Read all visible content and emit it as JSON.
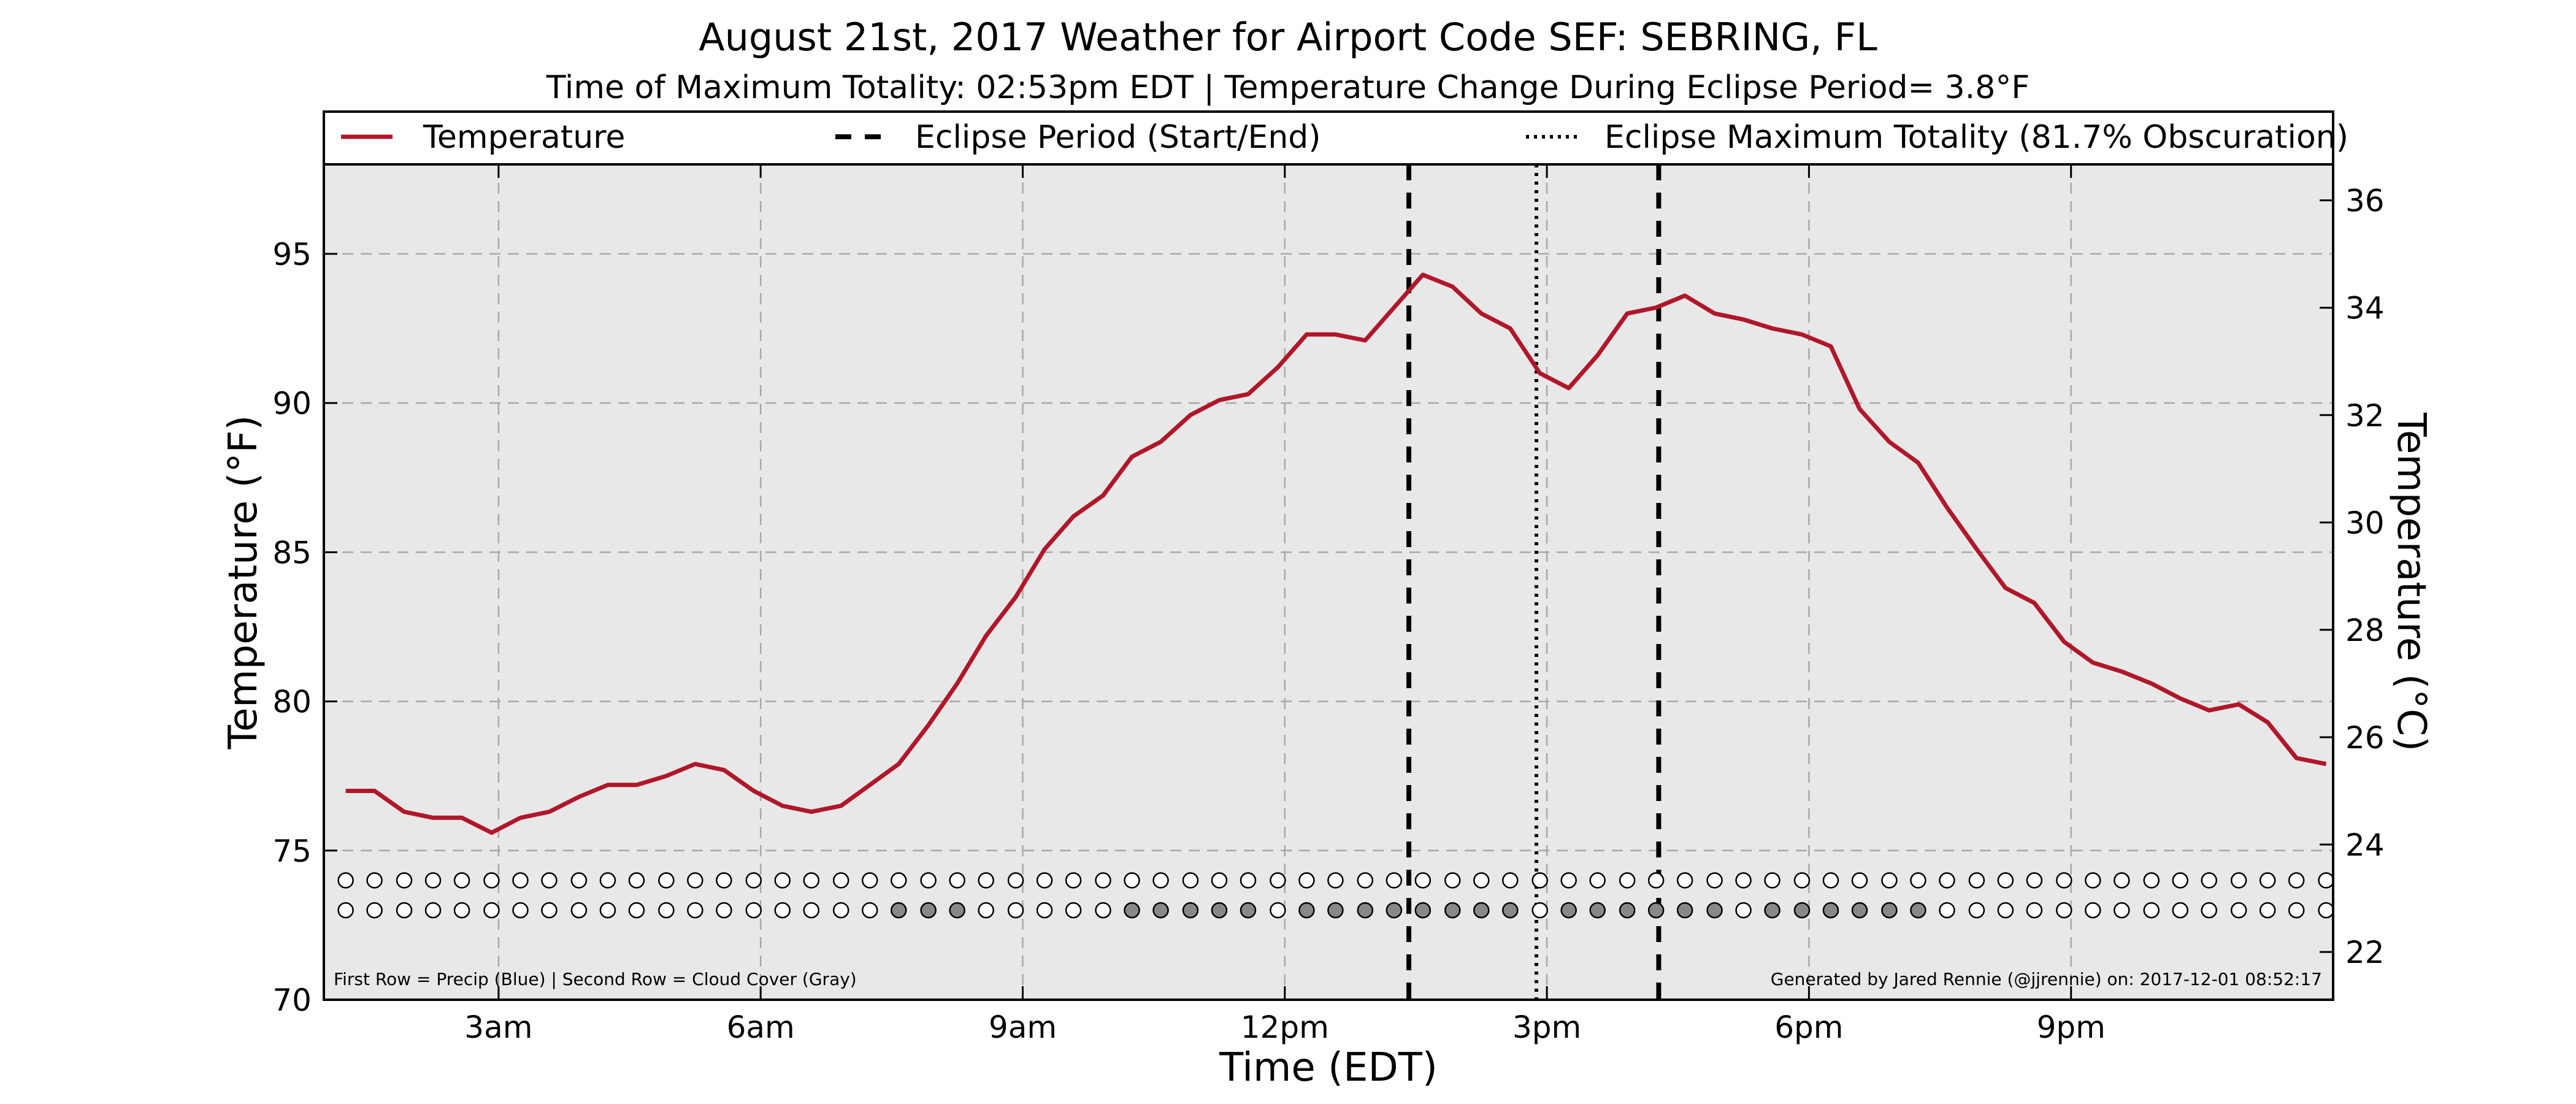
{
  "chart_data": {
    "type": "line",
    "title": "August 21st, 2017 Weather for Airport Code SEF: SEBRING, FL",
    "subtitle": "Time of Maximum Totality: 02:53pm EDT | Temperature Change During Eclipse Period= 3.8°F",
    "xlabel": "Time (EDT)",
    "ylabel": "Temperature (°F)",
    "ylabel_right": "Temperature (°C)",
    "xlim": [
      1.0,
      24.0
    ],
    "ylim": [
      70,
      98
    ],
    "ylim_right": [
      21.11,
      36.67
    ],
    "x_ticks": [
      {
        "x": 3,
        "label": "3am"
      },
      {
        "x": 6,
        "label": "6am"
      },
      {
        "x": 9,
        "label": "9am"
      },
      {
        "x": 12,
        "label": "12pm"
      },
      {
        "x": 15,
        "label": "3pm"
      },
      {
        "x": 18,
        "label": "6pm"
      },
      {
        "x": 21,
        "label": "9pm"
      }
    ],
    "y_ticks": [
      70,
      75,
      80,
      85,
      90,
      95
    ],
    "y_ticks_right": [
      22,
      24,
      26,
      28,
      30,
      32,
      34,
      36
    ],
    "grid": true,
    "legend_position": "top",
    "legend": [
      {
        "label": "Temperature",
        "style": "solid"
      },
      {
        "label": "Eclipse Period (Start/End)",
        "style": "dashed"
      },
      {
        "label": "Eclipse Maximum Totality (81.7% Obscuration)",
        "style": "dotted"
      }
    ],
    "series": [
      {
        "name": "Temperature",
        "color": "#b0172a",
        "points": [
          [
            1.25,
            77.0
          ],
          [
            1.58,
            77.0
          ],
          [
            1.92,
            76.3
          ],
          [
            2.25,
            76.1
          ],
          [
            2.58,
            76.1
          ],
          [
            2.92,
            75.6
          ],
          [
            3.25,
            76.1
          ],
          [
            3.58,
            76.3
          ],
          [
            3.92,
            76.8
          ],
          [
            4.25,
            77.2
          ],
          [
            4.58,
            77.2
          ],
          [
            4.92,
            77.5
          ],
          [
            5.25,
            77.9
          ],
          [
            5.58,
            77.7
          ],
          [
            5.92,
            77.0
          ],
          [
            6.25,
            76.5
          ],
          [
            6.58,
            76.3
          ],
          [
            6.92,
            76.5
          ],
          [
            7.25,
            77.2
          ],
          [
            7.58,
            77.9
          ],
          [
            7.92,
            79.2
          ],
          [
            8.25,
            80.6
          ],
          [
            8.58,
            82.2
          ],
          [
            8.92,
            83.5
          ],
          [
            9.25,
            85.1
          ],
          [
            9.58,
            86.2
          ],
          [
            9.92,
            86.9
          ],
          [
            10.25,
            88.2
          ],
          [
            10.58,
            88.7
          ],
          [
            10.92,
            89.6
          ],
          [
            11.25,
            90.1
          ],
          [
            11.58,
            90.3
          ],
          [
            11.92,
            91.2
          ],
          [
            12.25,
            92.3
          ],
          [
            12.58,
            92.3
          ],
          [
            12.92,
            92.1
          ],
          [
            13.25,
            93.2
          ],
          [
            13.58,
            94.3
          ],
          [
            13.92,
            93.9
          ],
          [
            14.25,
            93.0
          ],
          [
            14.58,
            92.5
          ],
          [
            14.92,
            91.0
          ],
          [
            15.25,
            90.5
          ],
          [
            15.58,
            91.6
          ],
          [
            15.92,
            93.0
          ],
          [
            16.25,
            93.2
          ],
          [
            16.58,
            93.6
          ],
          [
            16.92,
            93.0
          ],
          [
            17.25,
            92.8
          ],
          [
            17.58,
            92.5
          ],
          [
            17.92,
            92.3
          ],
          [
            18.25,
            91.9
          ],
          [
            18.58,
            89.8
          ],
          [
            18.92,
            88.7
          ],
          [
            19.25,
            88.0
          ],
          [
            19.58,
            86.5
          ],
          [
            19.92,
            85.1
          ],
          [
            20.25,
            83.8
          ],
          [
            20.58,
            83.3
          ],
          [
            20.92,
            82.0
          ],
          [
            21.25,
            81.3
          ],
          [
            21.58,
            81.0
          ],
          [
            21.92,
            80.6
          ],
          [
            22.25,
            80.1
          ],
          [
            22.58,
            79.7
          ],
          [
            22.92,
            79.9
          ],
          [
            23.25,
            79.3
          ],
          [
            23.58,
            78.1
          ],
          [
            23.92,
            77.9
          ]
        ]
      }
    ],
    "eclipse": {
      "start_x": 13.42,
      "end_x": 16.28,
      "max_x": 14.88
    },
    "dot_rows": {
      "x": [
        1.25,
        1.58,
        1.92,
        2.25,
        2.58,
        2.92,
        3.25,
        3.58,
        3.92,
        4.25,
        4.58,
        4.92,
        5.25,
        5.58,
        5.92,
        6.25,
        6.58,
        6.92,
        7.25,
        7.58,
        7.92,
        8.25,
        8.58,
        8.92,
        9.25,
        9.58,
        9.92,
        10.25,
        10.58,
        10.92,
        11.25,
        11.58,
        11.92,
        12.25,
        12.58,
        12.92,
        13.25,
        13.58,
        13.92,
        14.25,
        14.58,
        14.92,
        15.25,
        15.58,
        15.92,
        16.25,
        16.58,
        16.92,
        17.25,
        17.58,
        17.92,
        18.25,
        18.58,
        18.92,
        19.25,
        19.58,
        19.92,
        20.25,
        20.58,
        20.92,
        21.25,
        21.58,
        21.92,
        22.25,
        22.58,
        22.92,
        23.25,
        23.58,
        23.92
      ],
      "precip_y": 74,
      "cloud_y": 73,
      "cloud_filled": [
        7.58,
        7.92,
        8.25,
        10.25,
        10.58,
        10.92,
        11.25,
        11.58,
        12.25,
        12.58,
        12.92,
        13.25,
        13.58,
        13.92,
        14.25,
        14.58,
        15.25,
        15.58,
        15.92,
        16.25,
        16.58,
        16.92,
        17.58,
        17.92,
        18.25,
        18.58,
        18.92,
        19.25
      ],
      "precip_color": "#1f4fd1",
      "cloud_color": "#888888"
    },
    "footnote_left": "First Row = Precip (Blue) | Second Row = Cloud Cover (Gray)",
    "footnote_right": "Generated by Jared Rennie (@jjrennie) on: 2017-12-01 08:52:17"
  }
}
